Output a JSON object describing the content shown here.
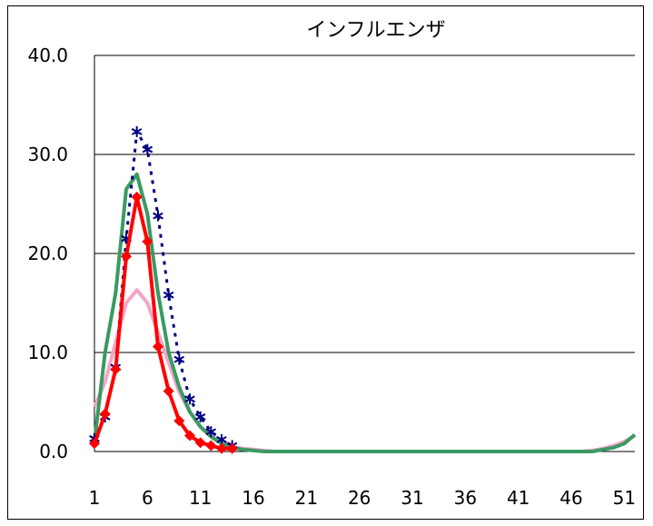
{
  "chart_data": {
    "type": "line",
    "title": "インフルエンザ",
    "xlabel": "",
    "ylabel": "",
    "ylim": [
      0,
      40
    ],
    "xlim": [
      1,
      52
    ],
    "y_ticks": [
      "0.0",
      "10.0",
      "20.0",
      "30.0",
      "40.0"
    ],
    "y_tick_values": [
      0,
      10,
      20,
      30,
      40
    ],
    "x_ticks": [
      "1",
      "6",
      "11",
      "16",
      "21",
      "26",
      "31",
      "36",
      "41",
      "46",
      "51"
    ],
    "x_tick_values": [
      1,
      6,
      11,
      16,
      21,
      26,
      31,
      36,
      41,
      46,
      51
    ],
    "grid": true,
    "legend": "none",
    "series": [
      {
        "color": "#f4a6c8",
        "style": "solid",
        "marker": "none",
        "x": [
          1,
          2,
          3,
          4,
          5,
          6,
          7,
          8,
          9,
          10,
          11,
          12,
          13,
          14,
          15,
          16,
          17,
          18,
          19,
          20,
          25,
          30,
          35,
          40,
          45,
          46,
          47,
          48,
          49,
          50,
          51,
          52
        ],
        "y": [
          4.5,
          7.0,
          11.0,
          15.0,
          16.3,
          15.0,
          12.0,
          9.0,
          6.0,
          4.0,
          2.5,
          1.5,
          1.0,
          0.5,
          0.3,
          0.2,
          0.1,
          0.0,
          0.0,
          0.0,
          0.0,
          0.0,
          0.0,
          0.0,
          0.0,
          0.0,
          0.0,
          0.1,
          0.3,
          0.6,
          1.0,
          1.6
        ]
      },
      {
        "color": "#3a9a62",
        "style": "solid",
        "marker": "none",
        "x": [
          1,
          2,
          3,
          4,
          5,
          6,
          7,
          8,
          9,
          10,
          11,
          12,
          13,
          14,
          15,
          16,
          17,
          18,
          20,
          25,
          30,
          35,
          40,
          45,
          46,
          47,
          48,
          49,
          50,
          51,
          52
        ],
        "y": [
          1.0,
          10.0,
          16.0,
          26.5,
          28.0,
          24.0,
          16.0,
          10.0,
          6.5,
          4.0,
          2.5,
          1.5,
          0.8,
          0.4,
          0.2,
          0.1,
          0.0,
          0.0,
          0.0,
          0.0,
          0.0,
          0.0,
          0.0,
          0.0,
          0.0,
          0.0,
          0.0,
          0.2,
          0.4,
          0.8,
          1.7
        ]
      },
      {
        "color": "#000080",
        "style": "dotted",
        "marker": "asterisk",
        "x": [
          1,
          2,
          3,
          4,
          5,
          6,
          7,
          8,
          9,
          10,
          11,
          12,
          13,
          14
        ],
        "y": [
          1.3,
          3.5,
          8.5,
          21.5,
          32.3,
          30.5,
          23.8,
          15.8,
          9.3,
          5.3,
          3.5,
          2.0,
          1.2,
          0.6
        ]
      },
      {
        "color": "#ff0000",
        "style": "solid",
        "marker": "diamond",
        "x": [
          1,
          2,
          3,
          4,
          5,
          6,
          7,
          8,
          9,
          10,
          11,
          12,
          13,
          14
        ],
        "y": [
          0.8,
          3.8,
          8.3,
          19.7,
          25.7,
          21.2,
          10.6,
          6.1,
          3.1,
          1.6,
          0.9,
          0.6,
          0.3,
          0.3
        ]
      }
    ]
  }
}
